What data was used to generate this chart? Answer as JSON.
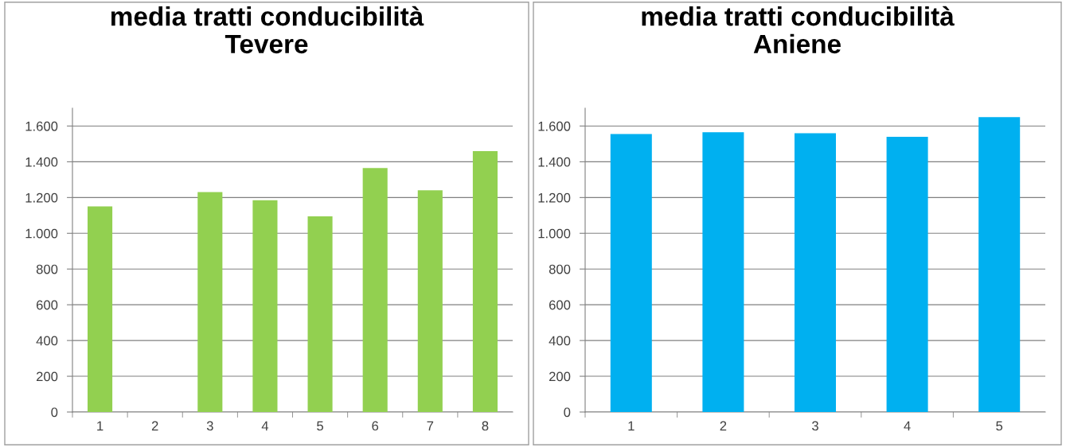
{
  "chart_data": [
    {
      "type": "bar",
      "title": "media tratti conducibilità\nTevere",
      "categories": [
        "1",
        "2",
        "3",
        "4",
        "5",
        "6",
        "7",
        "8"
      ],
      "series": [
        {
          "color": "#92d050",
          "values": [
            1150,
            null,
            1230,
            1185,
            1095,
            1365,
            1240,
            1460
          ]
        }
      ],
      "ylim": [
        0,
        1700
      ],
      "yticks": [
        0,
        200,
        400,
        600,
        800,
        {
          "value": 1000,
          "label": "1.000"
        },
        {
          "value": 1200,
          "label": "1.200"
        },
        {
          "value": 1400,
          "label": "1.400"
        },
        {
          "value": 1600,
          "label": "1.600"
        }
      ],
      "grid": "y",
      "legend": false
    },
    {
      "type": "bar",
      "title": "media tratti conducibilità\nAniene",
      "categories": [
        "1",
        "2",
        "3",
        "4",
        "5"
      ],
      "series": [
        {
          "color": "#00b0f0",
          "values": [
            1555,
            1565,
            1560,
            1540,
            1650
          ]
        }
      ],
      "ylim": [
        0,
        1700
      ],
      "yticks": [
        0,
        200,
        400,
        600,
        800,
        {
          "value": 1000,
          "label": "1.000"
        },
        {
          "value": 1200,
          "label": "1.200"
        },
        {
          "value": 1400,
          "label": "1.400"
        },
        {
          "value": 1600,
          "label": "1.600"
        }
      ],
      "grid": "y",
      "legend": false
    }
  ]
}
